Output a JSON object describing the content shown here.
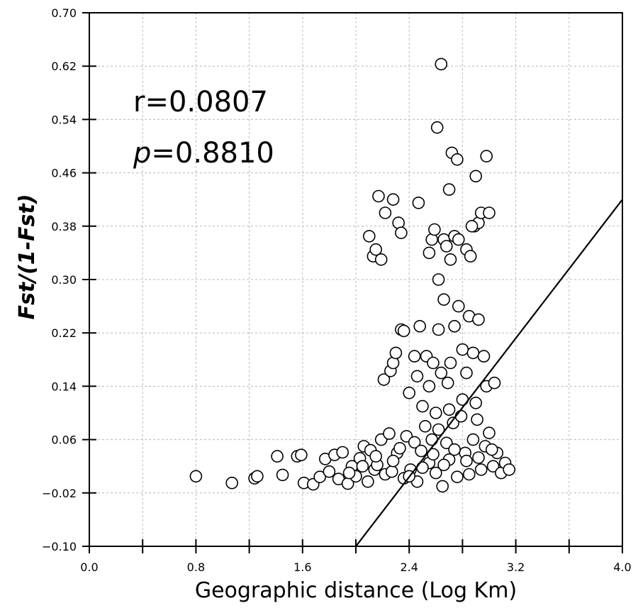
{
  "chart_data": {
    "type": "scatter",
    "xlabel": "Geographic distance (Log Km)",
    "ylabel": "Fst/(1-Fst)",
    "xlim": [
      0.0,
      4.0
    ],
    "ylim": [
      -0.1,
      0.7
    ],
    "x_ticks": [
      "0.0",
      "0.8",
      "1.6",
      "2.4",
      "3.2",
      "4.0"
    ],
    "y_ticks": [
      "0.70",
      "0.62",
      "0.54",
      "0.46",
      "0.38",
      "0.30",
      "0.22",
      "0.14",
      "0.06",
      "−0.02",
      "−0.10"
    ],
    "grid": true,
    "annotations": {
      "r_text": "r=0.0807",
      "p_symbol": "p",
      "p_value": "=0.8810"
    },
    "regression_line": {
      "x": [
        2.0,
        4.0
      ],
      "y": [
        -0.1,
        0.42
      ]
    },
    "points": [
      [
        0.8,
        0.005
      ],
      [
        1.07,
        -0.005
      ],
      [
        1.24,
        0.002
      ],
      [
        1.26,
        0.005
      ],
      [
        1.41,
        0.035
      ],
      [
        1.45,
        0.007
      ],
      [
        1.56,
        0.035
      ],
      [
        1.59,
        0.037
      ],
      [
        1.61,
        -0.005
      ],
      [
        1.68,
        -0.007
      ],
      [
        1.73,
        0.004
      ],
      [
        1.77,
        0.031
      ],
      [
        1.8,
        0.012
      ],
      [
        1.84,
        0.037
      ],
      [
        1.87,
        0.001
      ],
      [
        1.9,
        0.041
      ],
      [
        1.94,
        -0.006
      ],
      [
        1.97,
        0.02
      ],
      [
        2.0,
        0.005
      ],
      [
        2.03,
        0.032
      ],
      [
        2.06,
        0.05
      ],
      [
        2.09,
        -0.003
      ],
      [
        2.11,
        0.044
      ],
      [
        2.14,
        0.015
      ],
      [
        2.16,
        0.022
      ],
      [
        2.19,
        0.06
      ],
      [
        2.22,
        0.008
      ],
      [
        2.25,
        0.069
      ],
      [
        2.27,
        0.012
      ],
      [
        2.31,
        0.04
      ],
      [
        2.33,
        0.047
      ],
      [
        2.36,
        0.002
      ],
      [
        2.38,
        0.065
      ],
      [
        2.41,
        0.015
      ],
      [
        2.44,
        0.056
      ],
      [
        2.46,
        -0.003
      ],
      [
        2.49,
        0.043
      ],
      [
        2.52,
        0.08
      ],
      [
        2.55,
        0.025
      ],
      [
        2.57,
        0.06
      ],
      [
        2.6,
        0.01
      ],
      [
        2.62,
        0.075
      ],
      [
        2.65,
        -0.01
      ],
      [
        2.68,
        0.055
      ],
      [
        2.7,
        0.03
      ],
      [
        2.73,
        0.085
      ],
      [
        2.76,
        0.004
      ],
      [
        2.79,
        0.095
      ],
      [
        2.82,
        0.04
      ],
      [
        2.85,
        0.008
      ],
      [
        2.88,
        0.06
      ],
      [
        2.91,
        0.09
      ],
      [
        2.94,
        0.015
      ],
      [
        2.97,
        0.05
      ],
      [
        3.0,
        0.07
      ],
      [
        3.03,
        0.02
      ],
      [
        3.06,
        0.04
      ],
      [
        3.09,
        0.01
      ],
      [
        3.12,
        0.025
      ],
      [
        3.15,
        0.015
      ],
      [
        1.95,
        0.01
      ],
      [
        2.05,
        0.02
      ],
      [
        2.15,
        0.035
      ],
      [
        2.28,
        0.028
      ],
      [
        2.4,
        0.005
      ],
      [
        2.5,
        0.018
      ],
      [
        2.58,
        0.038
      ],
      [
        2.66,
        0.022
      ],
      [
        2.74,
        0.045
      ],
      [
        2.83,
        0.028
      ],
      [
        2.92,
        0.033
      ],
      [
        3.02,
        0.045
      ],
      [
        2.21,
        0.15
      ],
      [
        2.26,
        0.163
      ],
      [
        2.28,
        0.175
      ],
      [
        2.3,
        0.19
      ],
      [
        2.34,
        0.225
      ],
      [
        2.36,
        0.223
      ],
      [
        2.4,
        0.13
      ],
      [
        2.44,
        0.185
      ],
      [
        2.46,
        0.155
      ],
      [
        2.48,
        0.23
      ],
      [
        2.53,
        0.185
      ],
      [
        2.55,
        0.14
      ],
      [
        2.58,
        0.175
      ],
      [
        2.62,
        0.225
      ],
      [
        2.64,
        0.16
      ],
      [
        2.66,
        0.27
      ],
      [
        2.69,
        0.145
      ],
      [
        2.71,
        0.175
      ],
      [
        2.74,
        0.23
      ],
      [
        2.77,
        0.26
      ],
      [
        2.8,
        0.195
      ],
      [
        2.83,
        0.16
      ],
      [
        2.85,
        0.245
      ],
      [
        2.88,
        0.19
      ],
      [
        2.92,
        0.24
      ],
      [
        2.96,
        0.185
      ],
      [
        2.98,
        0.14
      ],
      [
        3.04,
        0.145
      ],
      [
        2.5,
        0.11
      ],
      [
        2.6,
        0.1
      ],
      [
        2.7,
        0.105
      ],
      [
        2.8,
        0.12
      ],
      [
        2.9,
        0.115
      ],
      [
        2.1,
        0.365
      ],
      [
        2.13,
        0.335
      ],
      [
        2.15,
        0.345
      ],
      [
        2.19,
        0.33
      ],
      [
        2.17,
        0.425
      ],
      [
        2.22,
        0.4
      ],
      [
        2.28,
        0.42
      ],
      [
        2.32,
        0.385
      ],
      [
        2.34,
        0.37
      ],
      [
        2.47,
        0.415
      ],
      [
        2.55,
        0.34
      ],
      [
        2.57,
        0.36
      ],
      [
        2.59,
        0.375
      ],
      [
        2.66,
        0.36
      ],
      [
        2.68,
        0.35
      ],
      [
        2.71,
        0.33
      ],
      [
        2.74,
        0.365
      ],
      [
        2.77,
        0.36
      ],
      [
        2.83,
        0.345
      ],
      [
        2.86,
        0.335
      ],
      [
        2.89,
        0.38
      ],
      [
        2.92,
        0.385
      ],
      [
        2.94,
        0.4
      ],
      [
        3.0,
        0.4
      ],
      [
        2.7,
        0.435
      ],
      [
        2.72,
        0.49
      ],
      [
        2.76,
        0.48
      ],
      [
        2.9,
        0.455
      ],
      [
        2.98,
        0.485
      ],
      [
        2.61,
        0.528
      ],
      [
        2.64,
        0.623
      ],
      [
        2.87,
        0.38
      ],
      [
        2.62,
        0.3
      ]
    ]
  }
}
